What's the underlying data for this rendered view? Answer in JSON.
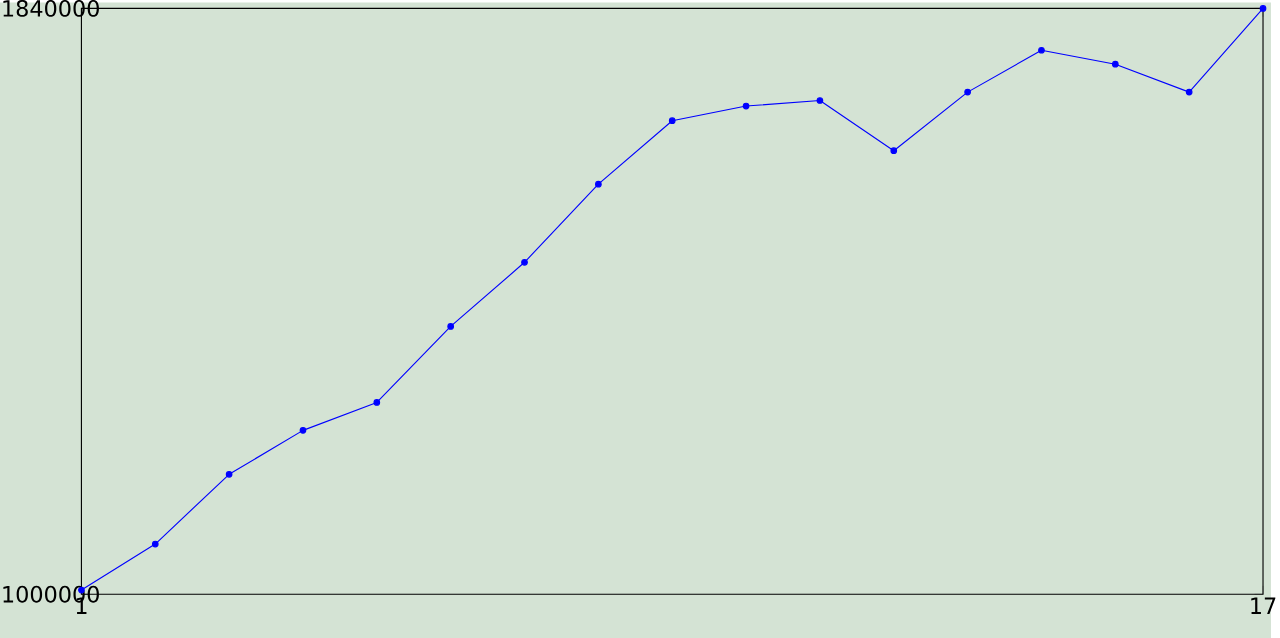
{
  "chart_data": {
    "type": "line",
    "x": [
      1,
      2,
      3,
      4,
      5,
      6,
      7,
      8,
      9,
      10,
      11,
      12,
      13,
      14,
      15,
      16,
      17
    ],
    "series": [
      {
        "color": "#0000ff",
        "values": [
          1006000,
          1072000,
          1172000,
          1235000,
          1275000,
          1384000,
          1476000,
          1588000,
          1679000,
          1700000,
          1708000,
          1636000,
          1720000,
          1780000,
          1760000,
          1720000,
          1840000
        ]
      }
    ],
    "xlim": [
      1,
      17
    ],
    "xticks": [
      1,
      17
    ],
    "ylim": [
      1000000,
      1840000
    ],
    "yticks": [
      1000000,
      1840000
    ],
    "marker": "circle",
    "line_style": "solid"
  }
}
